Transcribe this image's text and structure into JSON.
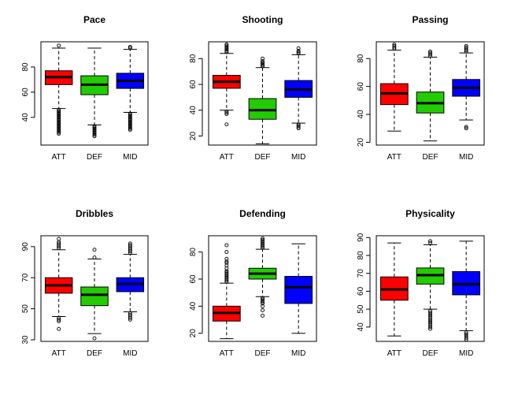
{
  "chart_data": [
    {
      "type": "boxplot",
      "title": "Pace",
      "categories": [
        "ATT",
        "DEF",
        "MID"
      ],
      "colors": [
        "#ff0000",
        "#22cc00",
        "#0000ff"
      ],
      "ylim": [
        18,
        100
      ],
      "yticks": [
        40,
        60,
        80
      ],
      "boxes": [
        {
          "whisker_low": 47,
          "q1": 66,
          "median": 72,
          "q3": 77,
          "whisker_high": 95,
          "outliers": [
            97,
            46,
            45,
            44,
            43,
            42,
            41,
            40,
            39,
            38,
            37,
            36,
            35,
            34,
            33,
            32,
            31,
            30,
            29,
            28,
            27
          ]
        },
        {
          "whisker_low": 34,
          "q1": 58,
          "median": 66,
          "q3": 73,
          "whisker_high": 95,
          "outliers": [
            33,
            32,
            31,
            30,
            29,
            28,
            27,
            26,
            25
          ]
        },
        {
          "whisker_low": 44,
          "q1": 63,
          "median": 69,
          "q3": 75,
          "whisker_high": 94,
          "outliers": [
            96,
            95,
            43,
            42,
            41,
            40,
            39,
            38,
            37,
            36,
            35,
            34,
            33,
            32,
            31,
            30
          ]
        }
      ]
    },
    {
      "type": "boxplot",
      "title": "Shooting",
      "categories": [
        "ATT",
        "DEF",
        "MID"
      ],
      "colors": [
        "#ff0000",
        "#22cc00",
        "#0000ff"
      ],
      "ylim": [
        13,
        93
      ],
      "yticks": [
        20,
        40,
        60,
        80
      ],
      "boxes": [
        {
          "whisker_low": 40,
          "q1": 57,
          "median": 62,
          "q3": 67,
          "whisker_high": 84,
          "outliers": [
            91,
            90,
            89,
            88,
            87,
            86,
            85,
            39,
            38,
            37,
            29
          ]
        },
        {
          "whisker_low": 14,
          "q1": 33,
          "median": 40,
          "q3": 49,
          "whisker_high": 73,
          "outliers": [
            80,
            78,
            77,
            76,
            75,
            74
          ]
        },
        {
          "whisker_low": 30,
          "q1": 50,
          "median": 56,
          "q3": 63,
          "whisker_high": 83,
          "outliers": [
            88,
            86,
            85,
            84,
            29,
            28,
            27,
            26
          ]
        }
      ]
    },
    {
      "type": "boxplot",
      "title": "Passing",
      "categories": [
        "ATT",
        "DEF",
        "MID"
      ],
      "colors": [
        "#ff0000",
        "#22cc00",
        "#0000ff"
      ],
      "ylim": [
        18,
        92
      ],
      "yticks": [
        20,
        40,
        60,
        80
      ],
      "boxes": [
        {
          "whisker_low": 28,
          "q1": 47,
          "median": 55,
          "q3": 62,
          "whisker_high": 86,
          "outliers": [
            90,
            89,
            88,
            87
          ]
        },
        {
          "whisker_low": 21,
          "q1": 41,
          "median": 48,
          "q3": 56,
          "whisker_high": 81,
          "outliers": [
            85,
            84,
            83,
            82
          ]
        },
        {
          "whisker_low": 36,
          "q1": 53,
          "median": 59,
          "q3": 65,
          "whisker_high": 84,
          "outliers": [
            89,
            88,
            87,
            86,
            85,
            31,
            30
          ]
        }
      ]
    },
    {
      "type": "boxplot",
      "title": "Dribbles",
      "categories": [
        "ATT",
        "DEF",
        "MID"
      ],
      "colors": [
        "#ff0000",
        "#22cc00",
        "#0000ff"
      ],
      "ylim": [
        29,
        97
      ],
      "yticks": [
        30,
        50,
        70,
        90
      ],
      "boxes": [
        {
          "whisker_low": 45,
          "q1": 60,
          "median": 65,
          "q3": 70,
          "whisker_high": 88,
          "outliers": [
            95,
            93,
            92,
            91,
            90,
            89,
            44,
            43,
            42,
            37
          ]
        },
        {
          "whisker_low": 34,
          "q1": 52,
          "median": 59,
          "q3": 64,
          "whisker_high": 82,
          "outliers": [
            88,
            83,
            31
          ]
        },
        {
          "whisker_low": 48,
          "q1": 61,
          "median": 66,
          "q3": 70,
          "whisker_high": 85,
          "outliers": [
            92,
            91,
            90,
            89,
            88,
            87,
            86,
            47,
            46,
            45,
            44,
            43
          ]
        }
      ]
    },
    {
      "type": "boxplot",
      "title": "Defending",
      "categories": [
        "ATT",
        "DEF",
        "MID"
      ],
      "colors": [
        "#ff0000",
        "#22cc00",
        "#0000ff"
      ],
      "ylim": [
        14,
        92
      ],
      "yticks": [
        20,
        40,
        60,
        80
      ],
      "boxes": [
        {
          "whisker_low": 16,
          "q1": 29,
          "median": 35,
          "q3": 40,
          "whisker_high": 57,
          "outliers": [
            85,
            80,
            75,
            73,
            72,
            70,
            68,
            66,
            65,
            64,
            63,
            62,
            61,
            60,
            59,
            58
          ]
        },
        {
          "whisker_low": 47,
          "q1": 60,
          "median": 64,
          "q3": 68,
          "whisker_high": 82,
          "outliers": [
            90,
            89,
            88,
            87,
            86,
            85,
            84,
            83,
            46,
            45,
            44,
            43,
            42,
            40,
            37,
            33
          ]
        },
        {
          "whisker_low": 20,
          "q1": 42,
          "median": 54,
          "q3": 62,
          "whisker_high": 86,
          "outliers": []
        }
      ]
    },
    {
      "type": "boxplot",
      "title": "Physicality",
      "categories": [
        "ATT",
        "DEF",
        "MID"
      ],
      "colors": [
        "#ff0000",
        "#22cc00",
        "#0000ff"
      ],
      "ylim": [
        32,
        91
      ],
      "yticks": [
        40,
        50,
        60,
        70,
        80,
        90
      ],
      "boxes": [
        {
          "whisker_low": 35,
          "q1": 55,
          "median": 61,
          "q3": 68,
          "whisker_high": 87,
          "outliers": []
        },
        {
          "whisker_low": 50,
          "q1": 64,
          "median": 69,
          "q3": 73,
          "whisker_high": 86,
          "outliers": [
            88,
            87,
            49,
            48,
            47,
            46,
            45,
            44,
            43,
            42,
            41,
            40,
            39
          ]
        },
        {
          "whisker_low": 38,
          "q1": 58,
          "median": 64,
          "q3": 71,
          "whisker_high": 88,
          "outliers": [
            37,
            36,
            35,
            34,
            33
          ]
        }
      ]
    }
  ]
}
